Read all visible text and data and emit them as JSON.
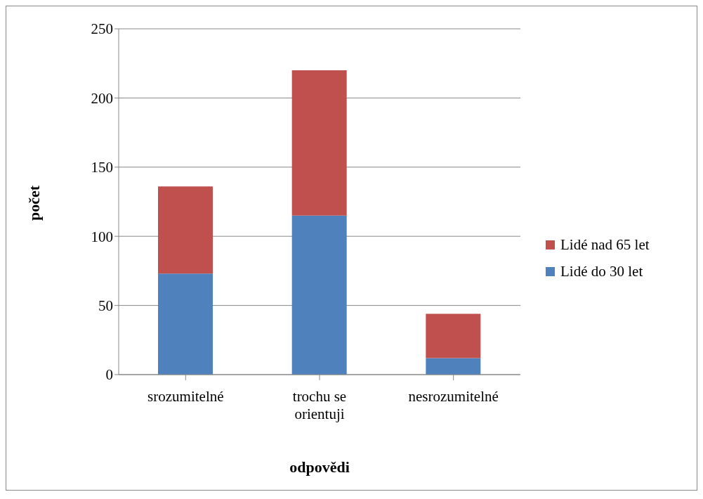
{
  "chart_data": {
    "type": "bar",
    "stacked": true,
    "xlabel": "odpovědi",
    "ylabel": "počet",
    "categories": [
      "srozumitelné",
      "trochu se orientuji",
      "nesrozumitelné"
    ],
    "series": [
      {
        "name": "Lidé do 30 let",
        "color": "#4f81bd",
        "values": [
          73,
          115,
          12
        ]
      },
      {
        "name": "Lidé nad 65 let",
        "color": "#c0504d",
        "values": [
          63,
          105,
          32
        ]
      }
    ],
    "ylim": [
      0,
      250
    ],
    "yticks": [
      0,
      50,
      100,
      150,
      200,
      250
    ],
    "grid": "y",
    "legend": "right"
  }
}
